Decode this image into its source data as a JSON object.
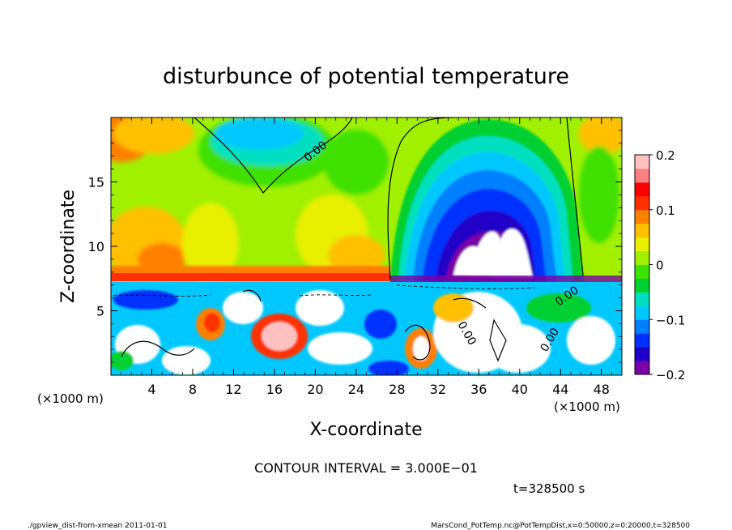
{
  "chart_data": {
    "type": "heatmap",
    "title": "disturbunce of potential temperature",
    "xlabel": "X-coordinate",
    "ylabel": "Z-coordinate",
    "x_unit_left": "(×1000 m)",
    "x_unit_right": "(×1000 m)",
    "xlim": [
      0,
      50
    ],
    "ylim": [
      0,
      20
    ],
    "x_ticks": [
      "4",
      "8",
      "12",
      "16",
      "20",
      "24",
      "28",
      "32",
      "36",
      "40",
      "44",
      "48"
    ],
    "x_tick_values": [
      4,
      8,
      12,
      16,
      20,
      24,
      28,
      32,
      36,
      40,
      44,
      48
    ],
    "y_ticks": [
      "5",
      "10",
      "15"
    ],
    "y_tick_values": [
      5,
      10,
      15
    ],
    "colorbar": {
      "vmin": -0.2,
      "vmax": 0.2,
      "tick_labels": [
        "0.2",
        "0.1",
        "0",
        "−0.1",
        "−0.2"
      ],
      "tick_values": [
        0.2,
        0.1,
        0,
        -0.1,
        -0.2
      ]
    },
    "contour_label": "0.00",
    "contour_interval_text": "CONTOUR INTERVAL = 3.000E−01",
    "time_text": "t=328500 s"
  },
  "footer": {
    "left": "./gpview_dist-from-xmean  2011-01-01",
    "right": "MarsCond_PotTemp.nc@PotTempDist,x=0:50000,z=0:20000,t=328500"
  },
  "colors": {
    "palette": [
      "#7a00a8",
      "#2000c8",
      "#0030ff",
      "#0080ff",
      "#00c8ff",
      "#00e0c0",
      "#00d030",
      "#40e000",
      "#a0f000",
      "#e8f000",
      "#ffc000",
      "#ff8000",
      "#ff3000",
      "#ff0000",
      "#ff8080",
      "#ffc0c0"
    ]
  }
}
